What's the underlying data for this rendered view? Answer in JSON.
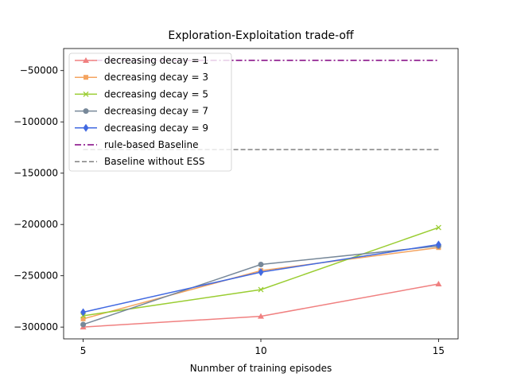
{
  "chart_data": {
    "type": "line",
    "title": "Exploration-Exploitation trade-off",
    "xlabel": "Nunmber of training episodes",
    "ylabel": "",
    "x": [
      5,
      10,
      15
    ],
    "x_ticks": [
      5,
      10,
      15
    ],
    "xlim": [
      4.45,
      15.55
    ],
    "ylim": [
      -311500,
      -28500
    ],
    "y_ticks": [
      -300000,
      -250000,
      -200000,
      -150000,
      -100000,
      -50000
    ],
    "y_tick_labels": [
      "−300000",
      "−250000",
      "−200000",
      "−150000",
      "−100000",
      "−50000"
    ],
    "grid": false,
    "legend_position": "upper-left",
    "series": [
      {
        "name": "decreasing decay = 1",
        "values": [
          -300000,
          -289500,
          -258000
        ],
        "color": "#f08080",
        "marker": "triangle",
        "style": "solid"
      },
      {
        "name": "decreasing decay = 3",
        "values": [
          -292000,
          -245000,
          -222500
        ],
        "color": "#f4a460",
        "marker": "square",
        "style": "solid"
      },
      {
        "name": "decreasing decay = 5",
        "values": [
          -289000,
          -263500,
          -203000
        ],
        "color": "#9acd32",
        "marker": "x",
        "style": "solid"
      },
      {
        "name": "decreasing decay = 7",
        "values": [
          -297500,
          -239000,
          -221000
        ],
        "color": "#778899",
        "marker": "circle",
        "style": "solid"
      },
      {
        "name": "decreasing decay = 9",
        "values": [
          -285500,
          -246500,
          -219500
        ],
        "color": "#4169e1",
        "marker": "diamond",
        "style": "solid"
      },
      {
        "name": "rule-based Baseline",
        "values": [
          -40000,
          -40000,
          -40000
        ],
        "color": "#800080",
        "marker": "none",
        "style": "dashdot"
      },
      {
        "name": "Baseline without ESS",
        "values": [
          -127000,
          -127000,
          -127000
        ],
        "color": "#808080",
        "marker": "none",
        "style": "dashed"
      }
    ]
  }
}
